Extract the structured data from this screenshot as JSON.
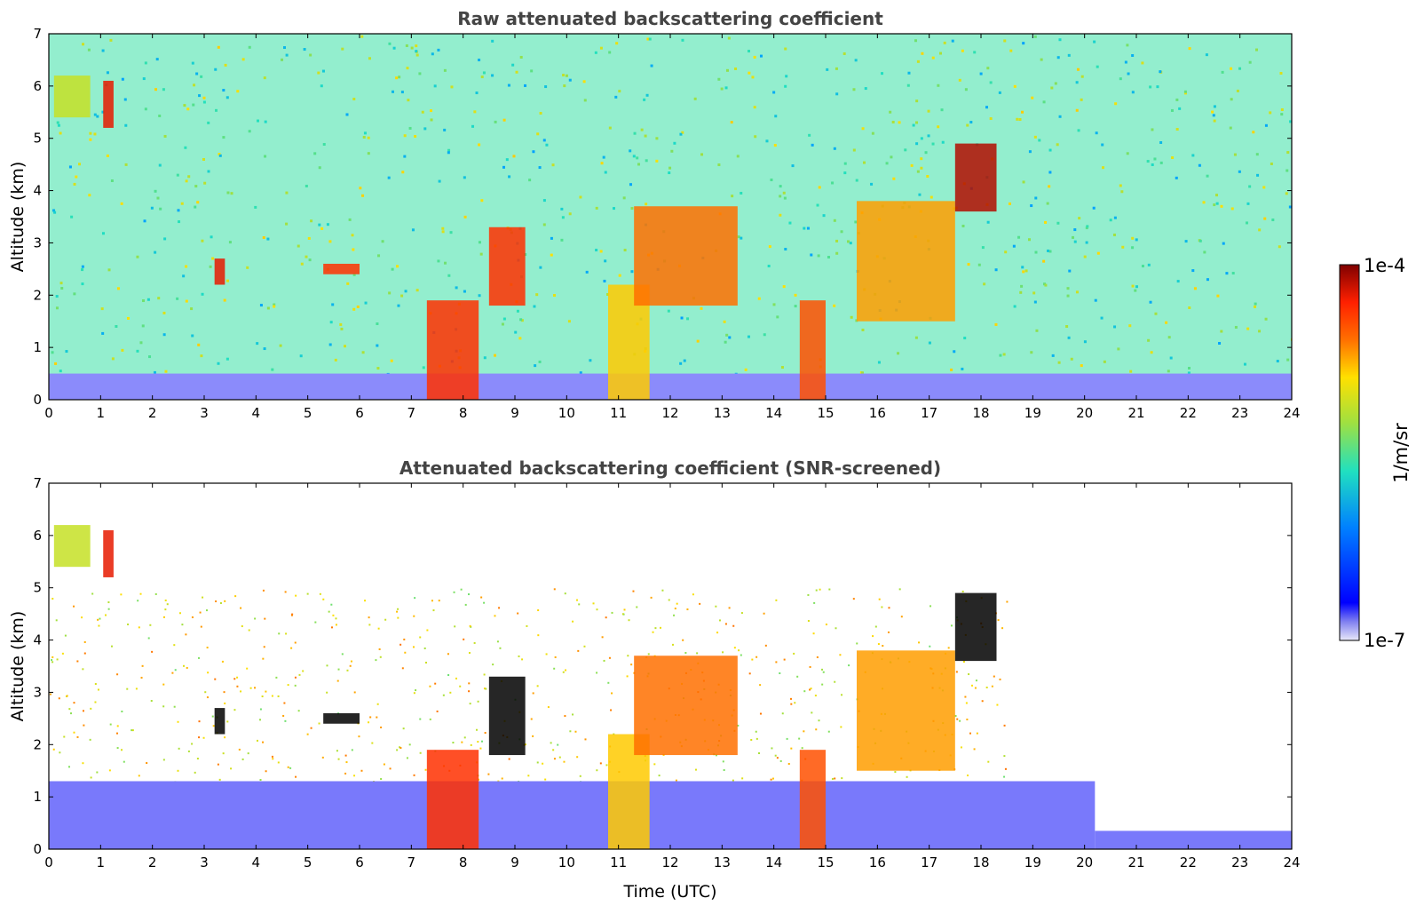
{
  "chart_data": [
    {
      "type": "heatmap",
      "title": "Raw attenuated backscattering coefficient",
      "xlabel": "",
      "ylabel": "Altitude (km)",
      "xlim": [
        0,
        24
      ],
      "ylim": [
        0,
        7
      ],
      "xticks": [
        "0",
        "1",
        "2",
        "3",
        "4",
        "5",
        "6",
        "7",
        "8",
        "9",
        "10",
        "11",
        "12",
        "13",
        "14",
        "15",
        "16",
        "17",
        "18",
        "19",
        "20",
        "21",
        "22",
        "23",
        "24"
      ],
      "yticks": [
        "0",
        "1",
        "2",
        "3",
        "4",
        "5",
        "6",
        "7"
      ],
      "screened": false,
      "features": [
        {
          "time": [
            0.0,
            24.0
          ],
          "altitude": [
            0.0,
            0.5
          ],
          "level": 0.05,
          "kind": "boundary-layer"
        },
        {
          "time": [
            0.1,
            0.8
          ],
          "altitude": [
            5.4,
            6.2
          ],
          "level": 0.55,
          "kind": "cloud"
        },
        {
          "time": [
            1.05,
            1.25
          ],
          "altitude": [
            5.2,
            6.1
          ],
          "level": 0.9,
          "kind": "cloud"
        },
        {
          "time": [
            3.2,
            3.4
          ],
          "altitude": [
            2.2,
            2.7
          ],
          "level": 0.9,
          "kind": "cloud"
        },
        {
          "time": [
            5.3,
            6.0
          ],
          "altitude": [
            2.4,
            2.6
          ],
          "level": 0.85,
          "kind": "cloud"
        },
        {
          "time": [
            7.3,
            8.3
          ],
          "altitude": [
            0.0,
            1.9
          ],
          "level": 0.85,
          "kind": "precipitation"
        },
        {
          "time": [
            8.5,
            9.2
          ],
          "altitude": [
            1.8,
            3.3
          ],
          "level": 0.85,
          "kind": "cloud"
        },
        {
          "time": [
            10.8,
            11.6
          ],
          "altitude": [
            0.0,
            2.2
          ],
          "level": 0.65,
          "kind": "precipitation"
        },
        {
          "time": [
            11.3,
            13.3
          ],
          "altitude": [
            1.8,
            3.7
          ],
          "level": 0.75,
          "kind": "cloud"
        },
        {
          "time": [
            14.5,
            15.0
          ],
          "altitude": [
            0.0,
            1.9
          ],
          "level": 0.8,
          "kind": "precipitation"
        },
        {
          "time": [
            15.6,
            17.5
          ],
          "altitude": [
            1.5,
            3.8
          ],
          "level": 0.7,
          "kind": "cloud"
        },
        {
          "time": [
            17.5,
            18.3
          ],
          "altitude": [
            3.6,
            4.9
          ],
          "level": 0.95,
          "kind": "cloud"
        }
      ]
    },
    {
      "type": "heatmap",
      "title": "Attenuated backscattering coefficient (SNR-screened)",
      "xlabel": "Time (UTC)",
      "ylabel": "Altitude (km)",
      "xlim": [
        0,
        24
      ],
      "ylim": [
        0,
        7
      ],
      "xticks": [
        "0",
        "1",
        "2",
        "3",
        "4",
        "5",
        "6",
        "7",
        "8",
        "9",
        "10",
        "11",
        "12",
        "13",
        "14",
        "15",
        "16",
        "17",
        "18",
        "19",
        "20",
        "21",
        "22",
        "23",
        "24"
      ],
      "yticks": [
        "0",
        "1",
        "2",
        "3",
        "4",
        "5",
        "6",
        "7"
      ],
      "screened": true,
      "features": [
        {
          "time": [
            0.0,
            20.2
          ],
          "altitude": [
            0.0,
            1.3
          ],
          "level": 0.06,
          "kind": "boundary-layer"
        },
        {
          "time": [
            20.2,
            24.0
          ],
          "altitude": [
            0.0,
            0.35
          ],
          "level": 0.06,
          "kind": "boundary-layer"
        },
        {
          "time": [
            0.1,
            0.8
          ],
          "altitude": [
            5.4,
            6.2
          ],
          "level": 0.55,
          "kind": "cloud"
        },
        {
          "time": [
            1.05,
            1.25
          ],
          "altitude": [
            5.2,
            6.1
          ],
          "level": 0.9,
          "kind": "cloud"
        },
        {
          "time": [
            3.2,
            3.4
          ],
          "altitude": [
            2.2,
            2.7
          ],
          "level": 1.0,
          "kind": "cloud"
        },
        {
          "time": [
            5.3,
            6.0
          ],
          "altitude": [
            2.4,
            2.6
          ],
          "level": 1.0,
          "kind": "cloud"
        },
        {
          "time": [
            7.3,
            8.3
          ],
          "altitude": [
            0.0,
            1.9
          ],
          "level": 0.85,
          "kind": "precipitation"
        },
        {
          "time": [
            8.5,
            9.2
          ],
          "altitude": [
            1.8,
            3.3
          ],
          "level": 1.0,
          "kind": "cloud"
        },
        {
          "time": [
            10.8,
            11.6
          ],
          "altitude": [
            0.0,
            2.2
          ],
          "level": 0.65,
          "kind": "precipitation"
        },
        {
          "time": [
            11.3,
            13.3
          ],
          "altitude": [
            1.8,
            3.7
          ],
          "level": 0.75,
          "kind": "cloud"
        },
        {
          "time": [
            14.5,
            15.0
          ],
          "altitude": [
            0.0,
            1.9
          ],
          "level": 0.8,
          "kind": "precipitation"
        },
        {
          "time": [
            15.6,
            17.5
          ],
          "altitude": [
            1.5,
            3.8
          ],
          "level": 0.7,
          "kind": "cloud"
        },
        {
          "time": [
            17.5,
            18.3
          ],
          "altitude": [
            3.6,
            4.9
          ],
          "level": 1.0,
          "kind": "cloud"
        }
      ]
    }
  ],
  "colorbar": {
    "label": "1/m/sr",
    "max_label": "1e-4",
    "min_label": "1e-7",
    "min": 1e-07,
    "max": 0.0001,
    "scale": "log",
    "colormap": [
      "#e8e8f8",
      "#0000ff",
      "#00a0ff",
      "#20e0c0",
      "#a0e040",
      "#ffe000",
      "#ff7000",
      "#ff2000",
      "#800000"
    ]
  }
}
